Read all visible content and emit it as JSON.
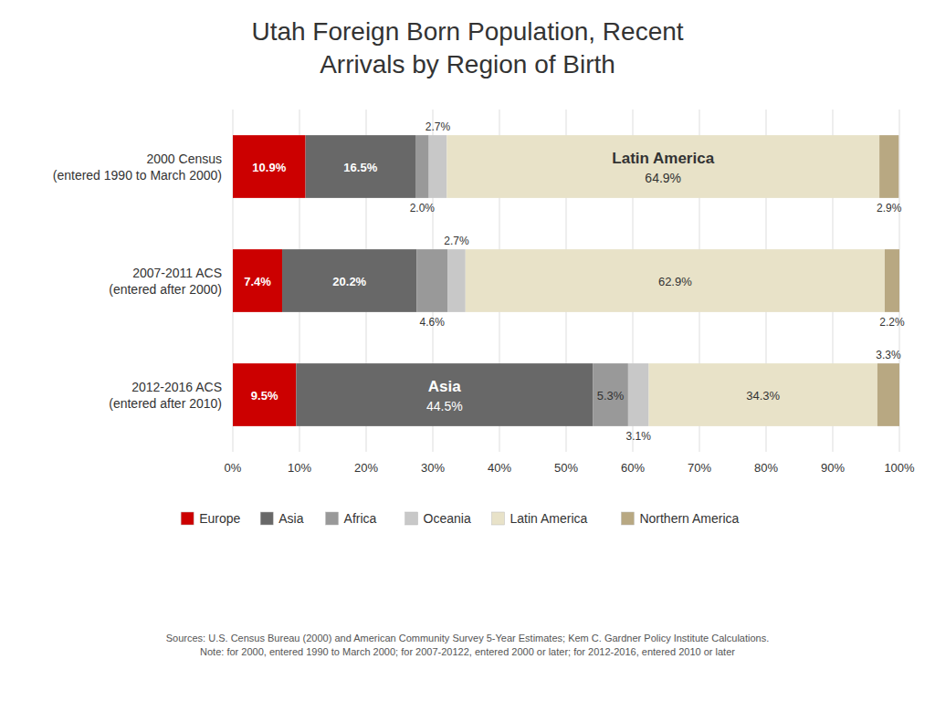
{
  "chart_data": {
    "type": "bar",
    "orientation": "horizontal",
    "stacked": true,
    "title": "Utah Foreign Born Population, Recent\nArrivals by Region of Birth",
    "categories": [
      "2000 Census\n(entered 1990 to March 2000)",
      "2007-2011 ACS\n(entered after 2000)",
      "2012-2016 ACS\n(entered after 2010)"
    ],
    "series": [
      {
        "name": "Europe",
        "color": "#cc0000",
        "values": [
          10.9,
          7.4,
          9.5
        ],
        "value_labels": [
          "10.9%",
          "7.4%",
          "9.5%"
        ]
      },
      {
        "name": "Asia",
        "color": "#686868",
        "values": [
          16.5,
          20.2,
          44.5
        ],
        "value_labels": [
          "16.5%",
          "20.2%",
          "44.5%"
        ]
      },
      {
        "name": "Africa",
        "color": "#999999",
        "values": [
          2.0,
          4.6,
          5.3
        ],
        "value_labels": [
          "2.0%",
          "4.6%",
          "5.3%"
        ]
      },
      {
        "name": "Oceania",
        "color": "#c8c8c8",
        "values": [
          2.7,
          2.7,
          3.1
        ],
        "value_labels": [
          "2.7%",
          "2.7%",
          "3.1%"
        ]
      },
      {
        "name": "Latin America",
        "color": "#e8e2c8",
        "values": [
          64.9,
          62.9,
          34.3
        ],
        "value_labels": [
          "64.9%",
          "62.9%",
          "34.3%"
        ]
      },
      {
        "name": "Northern America",
        "color": "#b8a882",
        "values": [
          2.9,
          2.2,
          3.3
        ],
        "value_labels": [
          "2.9%",
          "2.2%",
          "3.3%"
        ]
      }
    ],
    "xlim": [
      0,
      100
    ],
    "xticks": [
      {
        "value": 0,
        "label": "0%"
      },
      {
        "value": 10,
        "label": "10%"
      },
      {
        "value": 20,
        "label": "20%"
      },
      {
        "value": 30,
        "label": "30%"
      },
      {
        "value": 40,
        "label": "40%"
      },
      {
        "value": 50,
        "label": "50%"
      },
      {
        "value": 60,
        "label": "60%"
      },
      {
        "value": 70,
        "label": "70%"
      },
      {
        "value": 80,
        "label": "80%"
      },
      {
        "value": 90,
        "label": "90%"
      },
      {
        "value": 100,
        "label": "100%"
      }
    ],
    "grid": true,
    "data_labels": true,
    "legend": "bottom",
    "annotations": [
      {
        "text": "Latin America",
        "series": "Latin America",
        "category": "2000 Census\n(entered 1990 to March 2000)"
      },
      {
        "text": "Asia",
        "series": "Asia",
        "category": "2012-2016 ACS\n(entered after 2010)"
      },
      {
        "text": "Sources: U.S. Census Bureau (2000) and American Community Survey 5-Year Estimates; Kem C. Gardner Policy Institute Calculations.\nNote: for 2000, entered 1990 to March 2000; for 2007-20122, entered 2000 or later; for 2012-2016, entered 2010 or later"
      }
    ]
  }
}
